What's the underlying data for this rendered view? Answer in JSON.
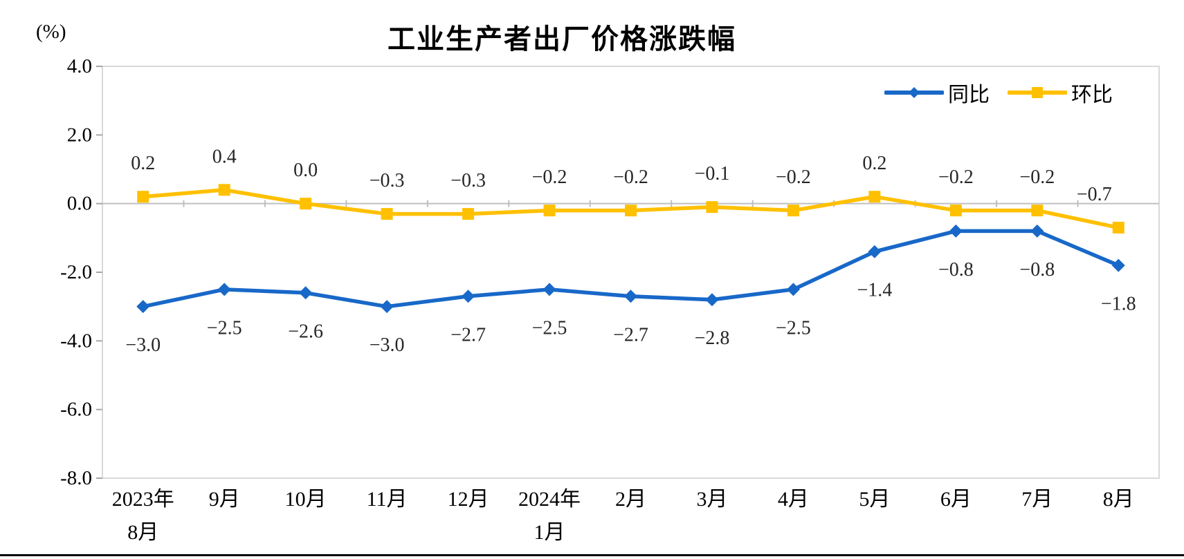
{
  "title": "工业生产者出厂价格涨跌幅",
  "unit_label": "(%)",
  "colors": {
    "yoy_blue": "#1868C8",
    "mom_yellow": "#FFC000",
    "plot_border": "#D9D9D9",
    "zero_line": "#BFBFBF",
    "tick": "#A6A6A6",
    "data_label": "#262626",
    "axis_text": "#000000"
  },
  "chart_data": {
    "type": "line",
    "title": "工业生产者出厂价格涨跌幅",
    "unit_label": "(%)",
    "categories": [
      [
        "2023年",
        "8月"
      ],
      [
        "9月"
      ],
      [
        "10月"
      ],
      [
        "11月"
      ],
      [
        "12月"
      ],
      [
        "2024年",
        "1月"
      ],
      [
        "2月"
      ],
      [
        "3月"
      ],
      [
        "4月"
      ],
      [
        "5月"
      ],
      [
        "6月"
      ],
      [
        "7月"
      ],
      [
        "8月"
      ]
    ],
    "series": [
      {
        "name": "同比",
        "key": "yoy",
        "color": "#1868C8",
        "marker": "diamond",
        "values": [
          -3.0,
          -2.5,
          -2.6,
          -3.0,
          -2.7,
          -2.5,
          -2.7,
          -2.8,
          -2.5,
          -1.4,
          -0.8,
          -0.8,
          -1.8
        ],
        "labels": [
          "−3.0",
          "−2.5",
          "−2.6",
          "−3.0",
          "−2.7",
          "−2.5",
          "−2.7",
          "−2.8",
          "−2.5",
          "−1.4",
          "−0.8",
          "−0.8",
          "−1.8"
        ],
        "label_side": "below"
      },
      {
        "name": "环比",
        "key": "mom",
        "color": "#FFC000",
        "marker": "square",
        "values": [
          0.2,
          0.4,
          0.0,
          -0.3,
          -0.3,
          -0.2,
          -0.2,
          -0.1,
          -0.2,
          0.2,
          -0.2,
          -0.2,
          -0.7
        ],
        "labels": [
          "0.2",
          "0.4",
          "0.0",
          "−0.3",
          "−0.3",
          "−0.2",
          "−0.2",
          "−0.1",
          "−0.2",
          "0.2",
          "−0.2",
          "−0.2",
          "−0.7"
        ],
        "label_side": "above"
      }
    ],
    "y_ticks": [
      "4.0",
      "2.0",
      "0.0",
      "-2.0",
      "-4.0",
      "-6.0",
      "-8.0"
    ],
    "ylim": [
      -8.0,
      4.0
    ],
    "grid": "zero-line-only",
    "legend_position": "top-right"
  }
}
